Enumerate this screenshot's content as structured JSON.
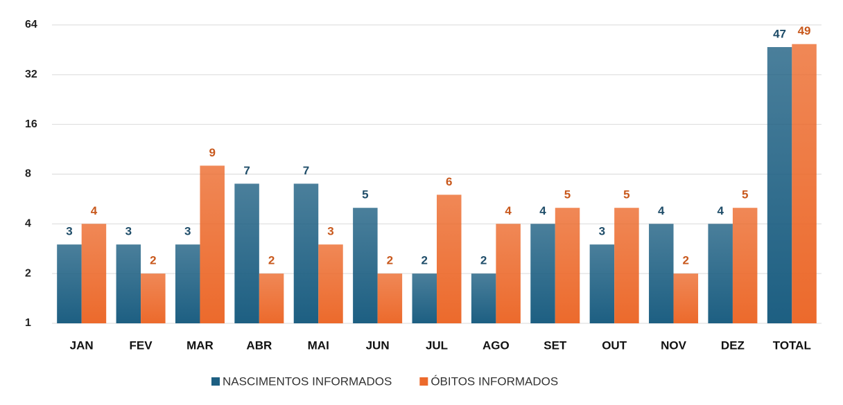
{
  "chart_data": {
    "type": "bar",
    "categories": [
      "JAN",
      "FEV",
      "MAR",
      "ABR",
      "MAI",
      "JUN",
      "JUL",
      "AGO",
      "SET",
      "OUT",
      "NOV",
      "DEZ",
      "TOTAL"
    ],
    "series": [
      {
        "name": "NASCIMENTOS INFORMADOS",
        "color": "#1d5f82",
        "label_color": "#1f4d69",
        "values": [
          3,
          3,
          3,
          7,
          7,
          5,
          2,
          2,
          4,
          3,
          4,
          4,
          47
        ]
      },
      {
        "name": "ÓBITOS INFORMADOS",
        "color": "#ec6a2c",
        "label_color": "#c8581c",
        "values": [
          4,
          2,
          9,
          2,
          3,
          2,
          6,
          4,
          5,
          5,
          2,
          5,
          49
        ]
      }
    ],
    "ylim": [
      1,
      64
    ],
    "yticks": [
      1,
      2,
      4,
      8,
      16,
      32,
      64
    ],
    "log_scale": true,
    "log_base": 2,
    "grid": true,
    "legend": "bottom",
    "data_labels": true
  }
}
